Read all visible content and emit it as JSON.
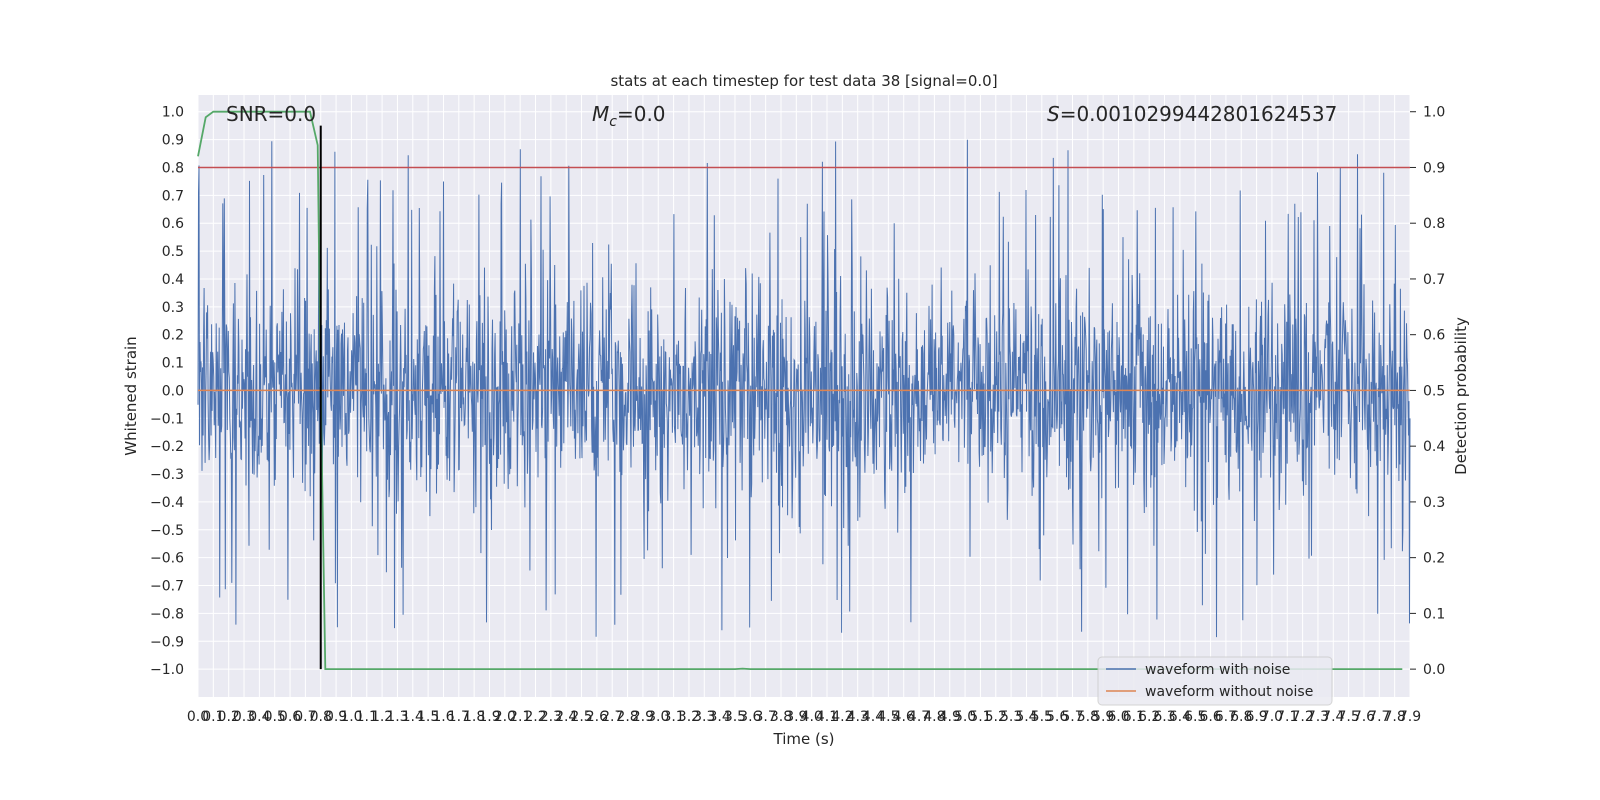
{
  "chart_data": {
    "type": "line",
    "title": "stats at each timestep for test data 38 [signal=0.0]",
    "xlabel": "Time (s)",
    "ylabel": "Whitened strain",
    "y2label": "Detection probability",
    "xlim": [
      0,
      7.9
    ],
    "ylim": [
      -1.1,
      1.06
    ],
    "y2lim": [
      -0.05,
      1.03
    ],
    "x_ticks": [
      0.0,
      0.1,
      0.2,
      0.3,
      0.4,
      0.5,
      0.6,
      0.7,
      0.8,
      0.9,
      1.0,
      1.1,
      1.2,
      1.3,
      1.4,
      1.5,
      1.6,
      1.7,
      1.8,
      1.9,
      2.0,
      2.1,
      2.2,
      2.3,
      2.4,
      2.5,
      2.6,
      2.7,
      2.8,
      2.9,
      3.0,
      3.1,
      3.2,
      3.3,
      3.4,
      3.5,
      3.6,
      3.7,
      3.8,
      3.9,
      4.0,
      4.1,
      4.2,
      4.3,
      4.4,
      4.5,
      4.6,
      4.7,
      4.8,
      4.9,
      5.0,
      5.1,
      5.2,
      5.3,
      5.4,
      5.5,
      5.6,
      5.7,
      5.8,
      5.9,
      6.0,
      6.1,
      6.2,
      6.3,
      6.4,
      6.5,
      6.6,
      6.7,
      6.8,
      6.9,
      7.0,
      7.1,
      7.2,
      7.3,
      7.4,
      7.5,
      7.6,
      7.7,
      7.8,
      7.9
    ],
    "y_ticks": [
      -1.0,
      -0.9,
      -0.8,
      -0.7,
      -0.6,
      -0.5,
      -0.4,
      -0.3,
      -0.2,
      -0.1,
      0.0,
      0.1,
      0.2,
      0.3,
      0.4,
      0.5,
      0.6,
      0.7,
      0.8,
      0.9,
      1.0
    ],
    "y2_ticks": [
      0.0,
      0.1,
      0.2,
      0.3,
      0.4,
      0.5,
      0.6,
      0.7,
      0.8,
      0.9,
      1.0
    ],
    "annotations": {
      "snr": "SNR=0.0",
      "mc_symbol": "M",
      "mc_sub": "c",
      "mc_value": "=0.0",
      "s_symbol": "S",
      "s_value": "=0.0010299442801624537"
    },
    "series": [
      {
        "name": "waveform with noise",
        "color": "#4c72b0",
        "axis": "left",
        "description_values": "dense noise, mostly within -0.4..0.4 with spikes to about +/-1.0",
        "typical_band": [
          -0.4,
          0.4
        ],
        "peak_max": 0.94,
        "peak_min": -1.0
      },
      {
        "name": "waveform without noise",
        "color": "#dd8452",
        "axis": "left",
        "x": [
          0.0,
          7.9
        ],
        "y": [
          0.0,
          0.0
        ]
      },
      {
        "color": "#55a868",
        "axis": "right",
        "x": [
          0.0,
          0.05,
          0.1,
          0.2,
          0.3,
          0.4,
          0.5,
          0.6,
          0.7,
          0.73,
          0.78,
          0.8,
          0.83,
          0.86,
          1.0,
          2.0,
          3.0,
          3.4,
          3.5,
          3.55,
          3.6,
          4.0,
          5.0,
          6.0,
          7.0,
          7.85
        ],
        "y": [
          0.92,
          0.99,
          1.0,
          1.0,
          1.0,
          1.0,
          1.0,
          1.0,
          1.0,
          1.0,
          0.94,
          0.5,
          0.0,
          0.0,
          0.0,
          0.0,
          0.0,
          0.0,
          0.0,
          0.001,
          0.0,
          0.0,
          0.0,
          0.0,
          0.0,
          0.0
        ]
      }
    ],
    "threshold_line": {
      "axis": "right",
      "y": 0.9,
      "color": "#c44e52"
    },
    "marker_line": {
      "axis": "left",
      "x": 0.8,
      "y_range": [
        -1.0,
        0.95
      ],
      "color": "#000000"
    },
    "legend": {
      "position": "lower-right",
      "entries": [
        {
          "label": "waveform with noise",
          "color": "#4c72b0"
        },
        {
          "label": "waveform without noise",
          "color": "#dd8452"
        }
      ]
    },
    "grid": true,
    "background": "#eaeaf2"
  }
}
